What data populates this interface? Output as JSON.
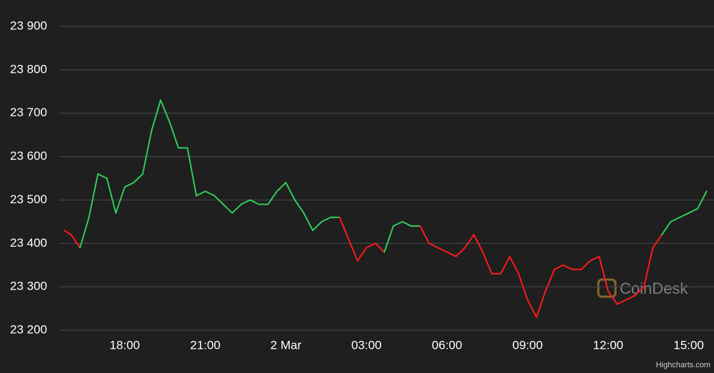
{
  "chart_data": {
    "type": "line",
    "x": [
      "1 Mar 15:45",
      "1 Mar 16:00",
      "1 Mar 16:20",
      "1 Mar 16:40",
      "1 Mar 17:00",
      "1 Mar 17:20",
      "1 Mar 17:40",
      "1 Mar 18:00",
      "1 Mar 18:20",
      "1 Mar 18:40",
      "1 Mar 19:00",
      "1 Mar 19:20",
      "1 Mar 19:40",
      "1 Mar 20:00",
      "1 Mar 20:20",
      "1 Mar 20:40",
      "1 Mar 21:00",
      "1 Mar 21:20",
      "1 Mar 21:40",
      "1 Mar 22:00",
      "1 Mar 22:20",
      "1 Mar 22:40",
      "1 Mar 23:00",
      "1 Mar 23:20",
      "1 Mar 23:40",
      "2 Mar 00:00",
      "2 Mar 00:20",
      "2 Mar 00:40",
      "2 Mar 01:00",
      "2 Mar 01:20",
      "2 Mar 01:40",
      "2 Mar 02:00",
      "2 Mar 02:20",
      "2 Mar 02:40",
      "2 Mar 03:00",
      "2 Mar 03:20",
      "2 Mar 03:40",
      "2 Mar 04:00",
      "2 Mar 04:20",
      "2 Mar 04:40",
      "2 Mar 05:00",
      "2 Mar 05:20",
      "2 Mar 05:40",
      "2 Mar 06:00",
      "2 Mar 06:20",
      "2 Mar 06:40",
      "2 Mar 07:00",
      "2 Mar 07:20",
      "2 Mar 07:40",
      "2 Mar 08:00",
      "2 Mar 08:20",
      "2 Mar 08:40",
      "2 Mar 09:00",
      "2 Mar 09:20",
      "2 Mar 09:40",
      "2 Mar 10:00",
      "2 Mar 10:20",
      "2 Mar 10:40",
      "2 Mar 11:00",
      "2 Mar 11:20",
      "2 Mar 11:40",
      "2 Mar 12:00",
      "2 Mar 12:20",
      "2 Mar 12:40",
      "2 Mar 13:00",
      "2 Mar 13:20",
      "2 Mar 13:40",
      "2 Mar 14:00",
      "2 Mar 14:20",
      "2 Mar 14:40",
      "2 Mar 15:00",
      "2 Mar 15:20",
      "2 Mar 15:40"
    ],
    "values": [
      23430,
      23420,
      23390,
      23460,
      23560,
      23550,
      23470,
      23530,
      23540,
      23560,
      23660,
      23730,
      23680,
      23620,
      23620,
      23510,
      23520,
      23510,
      23490,
      23470,
      23490,
      23500,
      23490,
      23490,
      23520,
      23540,
      23500,
      23470,
      23430,
      23450,
      23460,
      23460,
      23410,
      23360,
      23390,
      23400,
      23380,
      23440,
      23450,
      23440,
      23440,
      23400,
      23390,
      23380,
      23370,
      23390,
      23420,
      23380,
      23330,
      23330,
      23370,
      23330,
      23270,
      23230,
      23290,
      23340,
      23350,
      23340,
      23340,
      23360,
      23370,
      23290,
      23260,
      23270,
      23280,
      23300,
      23390,
      23420,
      23450,
      23460,
      23470,
      23480,
      23520
    ],
    "up_color": "#2ecc5a",
    "down_color": "#ff1a1a",
    "ylim": [
      23200,
      23900
    ],
    "yticks": [
      {
        "value": 23200,
        "label": "23 200"
      },
      {
        "value": 23300,
        "label": "23 300"
      },
      {
        "value": 23400,
        "label": "23 400"
      },
      {
        "value": 23500,
        "label": "23 500"
      },
      {
        "value": 23600,
        "label": "23 600"
      },
      {
        "value": 23700,
        "label": "23 700"
      },
      {
        "value": 23800,
        "label": "23 800"
      },
      {
        "value": 23900,
        "label": "23 900"
      }
    ],
    "xlim": [
      "1 Mar 15:40",
      "2 Mar 15:47"
    ],
    "xticks": [
      {
        "value": "1 Mar 18:00",
        "label": "18:00"
      },
      {
        "value": "1 Mar 21:00",
        "label": "21:00"
      },
      {
        "value": "2 Mar 00:00",
        "label": "2 Mar"
      },
      {
        "value": "2 Mar 03:00",
        "label": "03:00"
      },
      {
        "value": "2 Mar 06:00",
        "label": "06:00"
      },
      {
        "value": "2 Mar 09:00",
        "label": "09:00"
      },
      {
        "value": "2 Mar 12:00",
        "label": "12:00"
      },
      {
        "value": "2 Mar 15:00",
        "label": "15:00"
      }
    ],
    "grid": true,
    "watermark": "CoinDesk",
    "credits": "Highcharts.com"
  }
}
